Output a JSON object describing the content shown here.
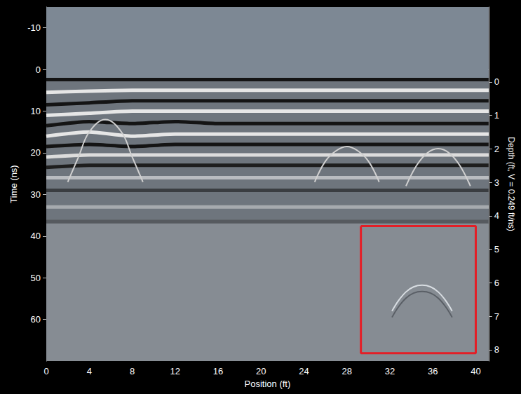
{
  "chart_data": {
    "type": "radargram",
    "x_label": "Position (ft)",
    "y_label": "Time (ns)",
    "y2_label": "Depth (ft, V = 0.249 ft/ns)",
    "xlim": [
      0,
      41.2
    ],
    "xticks": [
      0,
      4,
      8,
      12,
      16,
      20,
      24,
      28,
      32,
      36,
      40
    ],
    "ylim": [
      -15,
      70
    ],
    "yticks": [
      -10,
      0,
      10,
      20,
      30,
      40,
      50,
      60
    ],
    "y2lim": [
      -2.24,
      8.34
    ],
    "y2ticks": [
      0,
      1,
      2,
      3,
      4,
      5,
      6,
      7,
      8
    ],
    "grid": false,
    "zones": [
      {
        "from": -15,
        "to": 2,
        "color": "#7d8894"
      },
      {
        "from": 2,
        "to": 37,
        "color": "#6e757d"
      },
      {
        "from": 37,
        "to": 70,
        "color": "#868c93"
      }
    ],
    "series": [
      {
        "color": "#141414",
        "line_style": "thick",
        "x": [
          0,
          4,
          8,
          12,
          16,
          20,
          24,
          28,
          32,
          36,
          41.2
        ],
        "values": [
          2.4,
          2.4,
          2.4,
          2.4,
          2.4,
          2.4,
          2.4,
          2.4,
          2.4,
          2.4,
          2.4
        ]
      },
      {
        "color": "#e6e6e6",
        "line_style": "thick",
        "x": [
          0,
          4,
          8,
          12,
          16,
          20,
          24,
          28,
          32,
          36,
          41.2
        ],
        "values": [
          5.5,
          5.2,
          5,
          5,
          5,
          5,
          5,
          5,
          5,
          5,
          5
        ]
      },
      {
        "color": "#141414",
        "line_style": "thick",
        "x": [
          0,
          4,
          8,
          12,
          16,
          20,
          24,
          28,
          32,
          36,
          41.2
        ],
        "values": [
          8.5,
          8,
          7.5,
          7.5,
          7.5,
          7.5,
          7.5,
          7.5,
          7.5,
          7.5,
          7.5
        ]
      },
      {
        "color": "#e6e6e6",
        "line_style": "thick",
        "x": [
          0,
          4,
          8,
          12,
          16,
          20,
          24,
          28,
          32,
          36,
          41.2
        ],
        "values": [
          11,
          10.5,
          10,
          10,
          10,
          10,
          10,
          10,
          10,
          10,
          10
        ]
      },
      {
        "color": "#141414",
        "line_style": "thick",
        "x": [
          0,
          4,
          8,
          12,
          16,
          20,
          24,
          28,
          32,
          36,
          41.2
        ],
        "values": [
          13.5,
          12.5,
          13,
          12.5,
          13,
          13,
          13,
          13,
          13,
          13,
          13
        ]
      },
      {
        "color": "#e6e6e6",
        "line_style": "thick",
        "x": [
          0,
          4,
          8,
          12,
          16,
          20,
          24,
          28,
          32,
          36,
          41.2
        ],
        "values": [
          16,
          15,
          16,
          15.5,
          15.5,
          15.5,
          15.5,
          15.5,
          15.5,
          15.5,
          15.5
        ]
      },
      {
        "color": "#141414",
        "line_style": "thick",
        "x": [
          0,
          4,
          8,
          12,
          16,
          20,
          24,
          28,
          32,
          36,
          41.2
        ],
        "values": [
          18.5,
          18,
          18.5,
          18,
          18,
          18,
          18,
          18,
          18,
          18,
          18
        ]
      },
      {
        "color": "#dcdcdc",
        "line_style": "thick",
        "x": [
          0,
          4,
          8,
          12,
          16,
          20,
          24,
          28,
          32,
          36,
          41.2
        ],
        "values": [
          21,
          20.5,
          20.5,
          20.5,
          20.5,
          20.5,
          20.5,
          20.5,
          20.5,
          20.5,
          20.5
        ]
      },
      {
        "color": "#1e1e1e",
        "line_style": "thick",
        "x": [
          0,
          4,
          8,
          12,
          16,
          20,
          24,
          28,
          32,
          36,
          41.2
        ],
        "values": [
          23.5,
          23,
          23,
          23,
          23,
          23,
          23,
          23,
          23,
          23,
          23
        ]
      },
      {
        "color": "#b9bcc0",
        "line_style": "thick",
        "x": [
          0,
          4,
          8,
          12,
          16,
          20,
          24,
          28,
          32,
          36,
          41.2
        ],
        "values": [
          26,
          26,
          26,
          26,
          26,
          26,
          26,
          26,
          26,
          26,
          26
        ]
      },
      {
        "color": "#3a3d41",
        "line_style": "thick",
        "x": [
          0,
          4,
          8,
          12,
          16,
          20,
          24,
          28,
          32,
          36,
          41.2
        ],
        "values": [
          29,
          29,
          29,
          29,
          29,
          29,
          29,
          29,
          29,
          29,
          29
        ]
      },
      {
        "color": "#a6aaae",
        "line_style": "thick",
        "x": [
          0,
          4,
          8,
          12,
          16,
          20,
          24,
          28,
          32,
          36,
          41.2
        ],
        "values": [
          33,
          33,
          33,
          33,
          33,
          33,
          33,
          33,
          33,
          33,
          33
        ]
      },
      {
        "color": "#565a5f",
        "line_style": "thick",
        "x": [
          0,
          4,
          8,
          12,
          16,
          20,
          24,
          28,
          32,
          36,
          41.2
        ],
        "values": [
          36.5,
          36.5,
          36.5,
          36.5,
          36.5,
          36.5,
          36.5,
          36.5,
          36.5,
          36.5,
          36.5
        ]
      },
      {
        "color": "#d0d0d0",
        "line_style": "thin",
        "x": [
          2,
          3,
          4,
          5.5,
          7,
          8,
          9
        ],
        "values": [
          27,
          21,
          15,
          12,
          15,
          21,
          27
        ]
      },
      {
        "color": "#d0d0d0",
        "line_style": "thin",
        "x": [
          25,
          26,
          27,
          28,
          29,
          30,
          31
        ],
        "values": [
          27,
          22,
          19.5,
          18.5,
          19.5,
          22,
          27
        ]
      },
      {
        "color": "#d0d0d0",
        "line_style": "thin",
        "x": [
          33.5,
          34.5,
          35.5,
          36.5,
          37.5,
          38.5,
          39.5
        ],
        "values": [
          28,
          23,
          20,
          19,
          20,
          23,
          28
        ]
      },
      {
        "color": "#d8dde2",
        "line_style": "thin",
        "x": [
          32.2,
          32.8,
          33.5,
          34.2,
          35,
          35.8,
          36.5,
          37.2,
          37.8
        ],
        "values": [
          58,
          55.5,
          53.4,
          52.2,
          51.8,
          52.2,
          53.4,
          55.5,
          58
        ]
      },
      {
        "color": "#5a5f66",
        "line_style": "thin",
        "x": [
          32.2,
          32.8,
          33.5,
          34.2,
          35,
          35.8,
          36.5,
          37.2,
          37.8
        ],
        "values": [
          59.5,
          57,
          54.9,
          53.7,
          53.3,
          53.7,
          54.9,
          57,
          59.5
        ]
      }
    ],
    "annotations": [
      {
        "shape": "rectangle",
        "x": [
          29.3,
          40.0
        ],
        "y": [
          37.6,
          68.1
        ],
        "color": "#e41e26"
      }
    ]
  }
}
